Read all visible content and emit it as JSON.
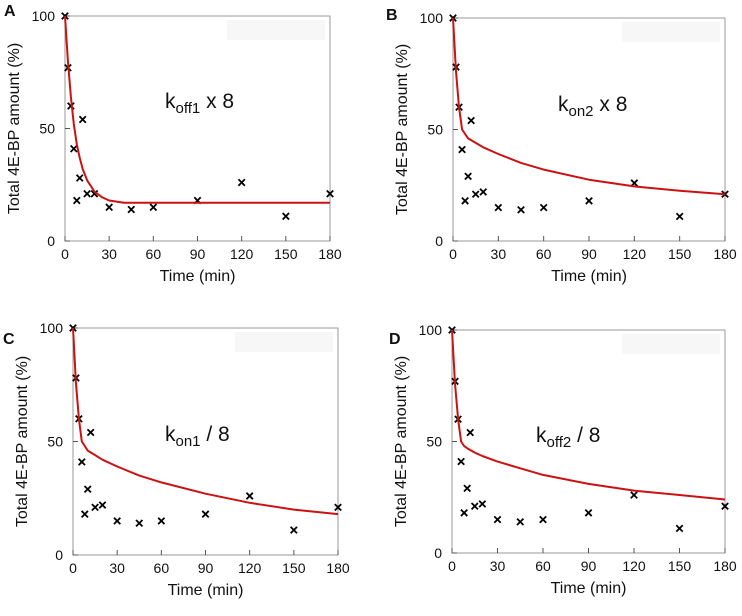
{
  "figure": {
    "panels": [
      {
        "letter": "A",
        "annotation": {
          "base": "k",
          "sub": "off1",
          "suffix": " x 8"
        }
      },
      {
        "letter": "B",
        "annotation": {
          "base": "k",
          "sub": "on2",
          "suffix": " x 8"
        }
      },
      {
        "letter": "C",
        "annotation": {
          "base": "k",
          "sub": "on1",
          "suffix": " / 8"
        }
      },
      {
        "letter": "D",
        "annotation": {
          "base": "k",
          "sub": "off2",
          "suffix": " / 8"
        }
      }
    ]
  },
  "chart_data": [
    {
      "type": "scatter",
      "title": "",
      "xlabel": "Time (min)",
      "ylabel": "Total  4E-BP amount (%)",
      "xlim": [
        0,
        180
      ],
      "ylim": [
        0,
        100
      ],
      "xticks": [
        0,
        30,
        60,
        90,
        120,
        150,
        180
      ],
      "yticks": [
        0,
        50,
        100
      ],
      "grid": false,
      "series": [
        {
          "kind": "markers",
          "marker": "x",
          "color": "#000000",
          "points": [
            [
              0,
              100
            ],
            [
              2,
              77
            ],
            [
              4,
              60
            ],
            [
              6,
              41
            ],
            [
              8,
              18
            ],
            [
              10,
              28
            ],
            [
              12,
              54
            ],
            [
              15,
              21
            ],
            [
              20,
              21
            ],
            [
              30,
              15
            ],
            [
              45,
              14
            ],
            [
              60,
              15
            ],
            [
              90,
              18
            ],
            [
              120,
              26
            ],
            [
              150,
              11
            ],
            [
              180,
              21
            ]
          ]
        },
        {
          "kind": "line",
          "color": "#cc1111",
          "points": [
            [
              0,
              100
            ],
            [
              2,
              80
            ],
            [
              4,
              64
            ],
            [
              6,
              52
            ],
            [
              8,
              43
            ],
            [
              10,
              37
            ],
            [
              12,
              32
            ],
            [
              15,
              27
            ],
            [
              20,
              22
            ],
            [
              25,
              19.5
            ],
            [
              30,
              18
            ],
            [
              40,
              17
            ],
            [
              60,
              17
            ],
            [
              90,
              17
            ],
            [
              120,
              17
            ],
            [
              180,
              17
            ]
          ]
        }
      ]
    },
    {
      "type": "scatter",
      "title": "",
      "xlabel": "Time (min)",
      "ylabel": "Total  4E-BP amount (%)",
      "xlim": [
        0,
        180
      ],
      "ylim": [
        0,
        100
      ],
      "xticks": [
        0,
        30,
        60,
        90,
        120,
        150,
        180
      ],
      "yticks": [
        0,
        50,
        100
      ],
      "grid": false,
      "series": [
        {
          "kind": "markers",
          "marker": "x",
          "color": "#000000",
          "points": [
            [
              0,
              100
            ],
            [
              2,
              78
            ],
            [
              4,
              60
            ],
            [
              6,
              41
            ],
            [
              8,
              18
            ],
            [
              10,
              29
            ],
            [
              12,
              54
            ],
            [
              15,
              21
            ],
            [
              20,
              22
            ],
            [
              30,
              15
            ],
            [
              45,
              14
            ],
            [
              60,
              15
            ],
            [
              90,
              18
            ],
            [
              120,
              26
            ],
            [
              150,
              11
            ],
            [
              180,
              21
            ]
          ]
        },
        {
          "kind": "line",
          "color": "#cc1111",
          "points": [
            [
              0,
              100
            ],
            [
              2,
              76
            ],
            [
              4,
              60
            ],
            [
              6,
              50
            ],
            [
              8,
              48
            ],
            [
              10,
              46
            ],
            [
              15,
              44
            ],
            [
              20,
              42
            ],
            [
              30,
              39
            ],
            [
              45,
              35
            ],
            [
              60,
              32
            ],
            [
              90,
              27.5
            ],
            [
              120,
              24.5
            ],
            [
              150,
              22.5
            ],
            [
              180,
              21
            ]
          ]
        }
      ]
    },
    {
      "type": "scatter",
      "title": "",
      "xlabel": "Time (min)",
      "ylabel": "Total  4E-BP amount (%)",
      "xlim": [
        0,
        180
      ],
      "ylim": [
        0,
        100
      ],
      "xticks": [
        0,
        30,
        60,
        90,
        120,
        150,
        180
      ],
      "yticks": [
        0,
        50,
        100
      ],
      "grid": false,
      "series": [
        {
          "kind": "markers",
          "marker": "x",
          "color": "#000000",
          "points": [
            [
              0,
              100
            ],
            [
              2,
              78
            ],
            [
              4,
              60
            ],
            [
              6,
              41
            ],
            [
              8,
              18
            ],
            [
              10,
              29
            ],
            [
              12,
              54
            ],
            [
              15,
              21
            ],
            [
              20,
              22
            ],
            [
              30,
              15
            ],
            [
              45,
              14
            ],
            [
              60,
              15
            ],
            [
              90,
              18
            ],
            [
              120,
              26
            ],
            [
              150,
              11
            ],
            [
              180,
              21
            ]
          ]
        },
        {
          "kind": "line",
          "color": "#cc1111",
          "points": [
            [
              0,
              100
            ],
            [
              2,
              76
            ],
            [
              4,
              60
            ],
            [
              6,
              50
            ],
            [
              8,
              48
            ],
            [
              10,
              46
            ],
            [
              15,
              44
            ],
            [
              20,
              42
            ],
            [
              30,
              39
            ],
            [
              45,
              35
            ],
            [
              60,
              32
            ],
            [
              90,
              27
            ],
            [
              120,
              23
            ],
            [
              150,
              20
            ],
            [
              180,
              18
            ]
          ]
        }
      ]
    },
    {
      "type": "scatter",
      "title": "",
      "xlabel": "Time (min)",
      "ylabel": "Total  4E-BP amount (%)",
      "xlim": [
        0,
        180
      ],
      "ylim": [
        0,
        100
      ],
      "xticks": [
        0,
        30,
        60,
        90,
        120,
        150,
        180
      ],
      "yticks": [
        0,
        50,
        100
      ],
      "grid": false,
      "series": [
        {
          "kind": "markers",
          "marker": "x",
          "color": "#000000",
          "points": [
            [
              0,
              100
            ],
            [
              2,
              77
            ],
            [
              4,
              60
            ],
            [
              6,
              41
            ],
            [
              8,
              18
            ],
            [
              10,
              29
            ],
            [
              12,
              54
            ],
            [
              15,
              21
            ],
            [
              20,
              22
            ],
            [
              30,
              15
            ],
            [
              45,
              14
            ],
            [
              60,
              15
            ],
            [
              90,
              18
            ],
            [
              120,
              26
            ],
            [
              150,
              11
            ],
            [
              180,
              21
            ]
          ]
        },
        {
          "kind": "line",
          "color": "#cc1111",
          "points": [
            [
              0,
              100
            ],
            [
              2,
              76
            ],
            [
              4,
              60
            ],
            [
              6,
              50
            ],
            [
              8,
              48
            ],
            [
              10,
              47
            ],
            [
              15,
              45
            ],
            [
              20,
              43.5
            ],
            [
              30,
              41
            ],
            [
              45,
              38
            ],
            [
              60,
              35
            ],
            [
              90,
              31
            ],
            [
              120,
              28
            ],
            [
              150,
              26
            ],
            [
              180,
              24
            ]
          ]
        }
      ]
    }
  ]
}
